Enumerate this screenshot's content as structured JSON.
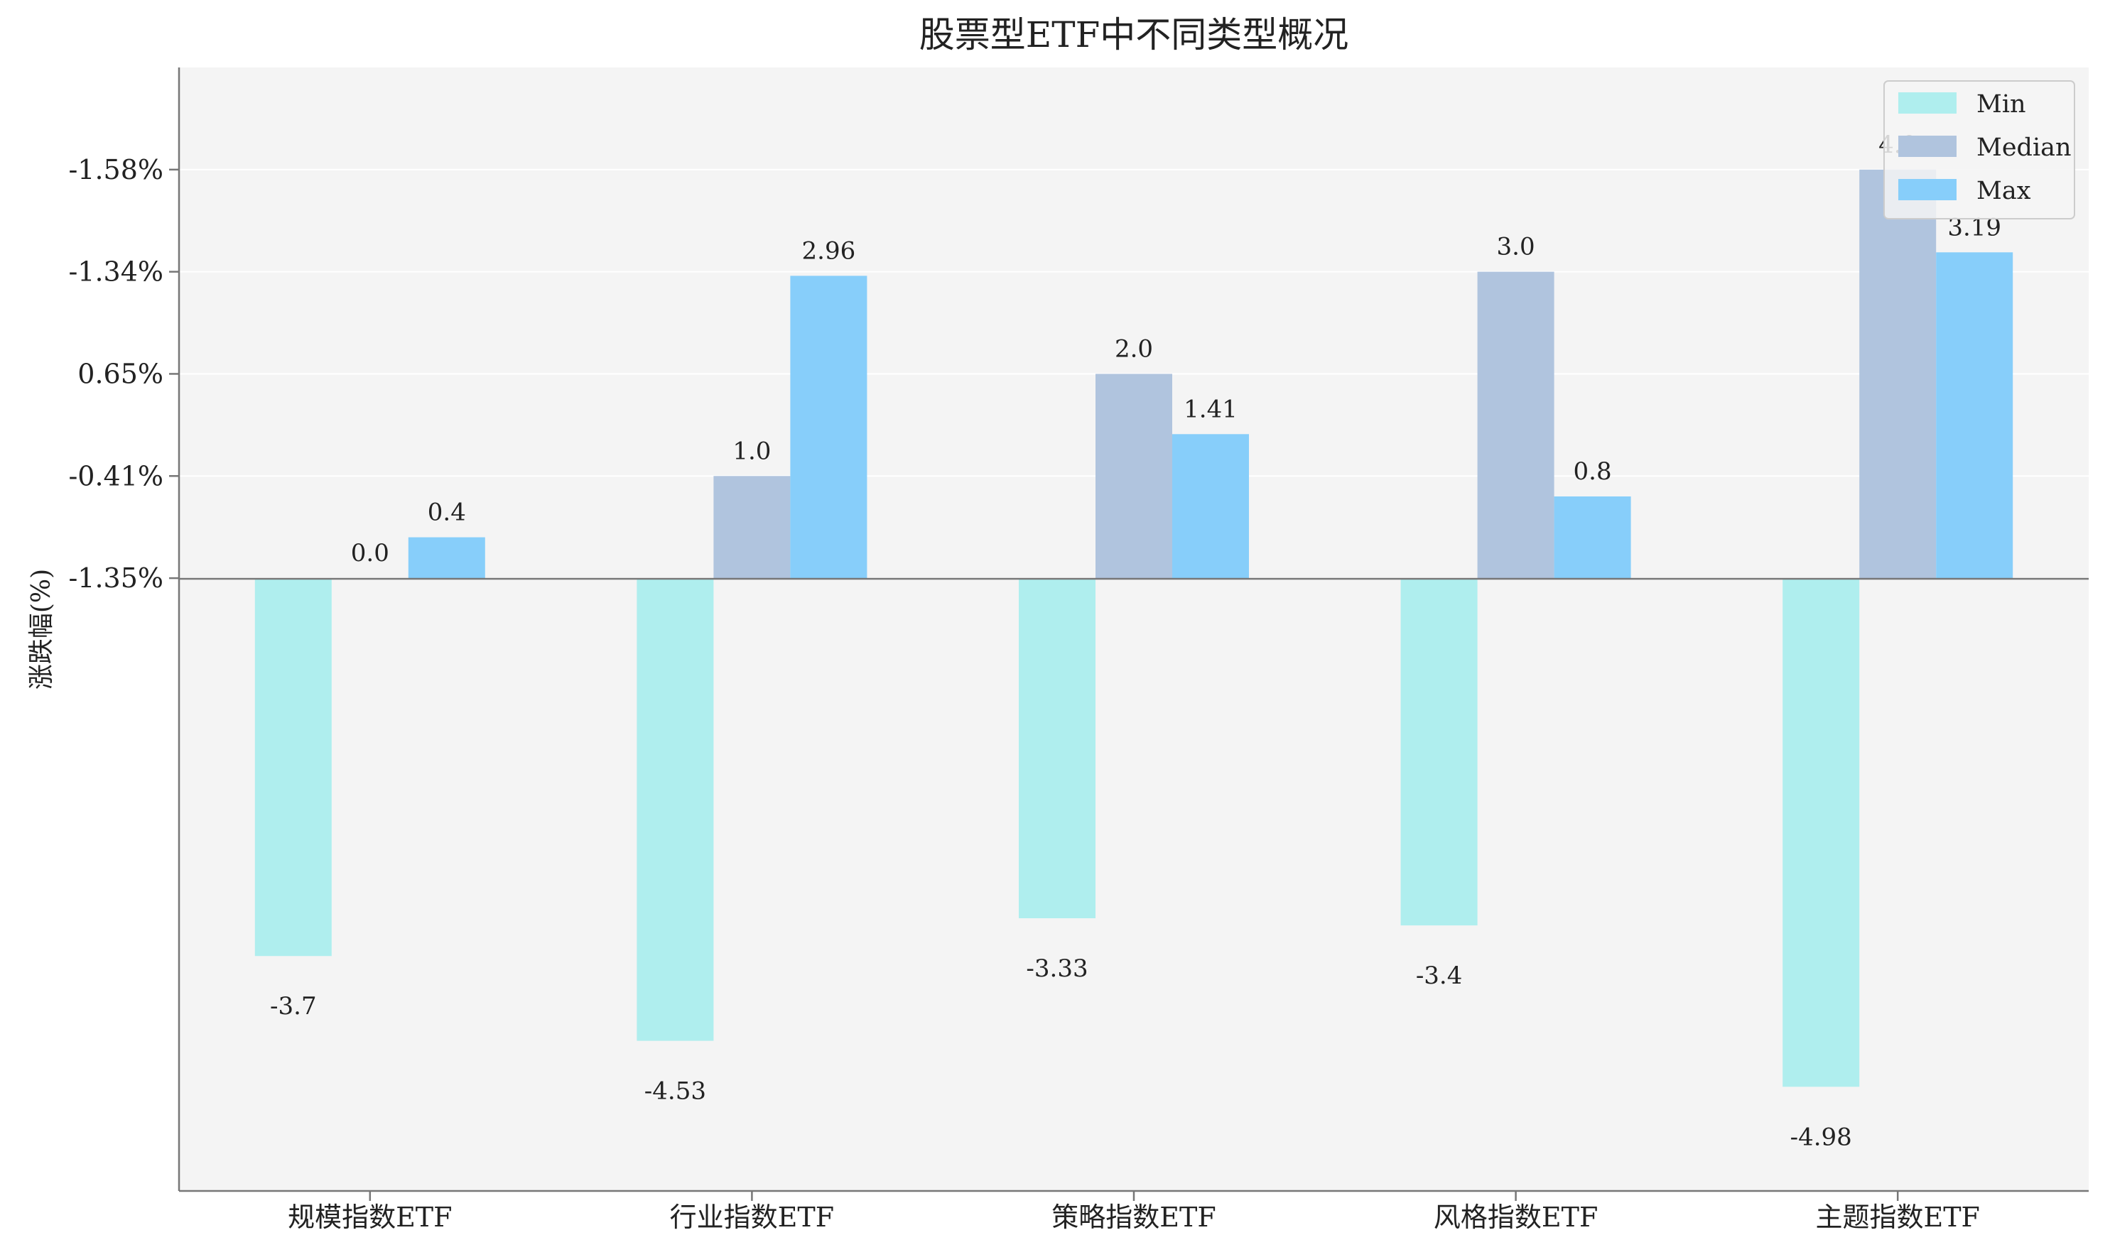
{
  "chart_data": {
    "type": "bar",
    "title": "股票型ETF中不同类型概况",
    "ylabel": "涨跌幅(%)",
    "xlabel": "",
    "categories": [
      "规模指数ETF",
      "行业指数ETF",
      "策略指数ETF",
      "风格指数ETF",
      "主题指数ETF"
    ],
    "series": [
      {
        "name": "Min",
        "color": "#afeeee",
        "values": [
          -3.7,
          -4.53,
          -3.33,
          -3.4,
          -4.98
        ],
        "labels": [
          "-3.7",
          "-4.53",
          "-3.33",
          "-3.4",
          "-4.98"
        ]
      },
      {
        "name": "Median",
        "color": "#b0c4de",
        "values": [
          0.0,
          1.0,
          2.0,
          3.0,
          4.0
        ],
        "labels": [
          "0.0",
          "1.0",
          "2.0",
          "3.0",
          "4.0"
        ]
      },
      {
        "name": "Max",
        "color": "#87cefa",
        "values": [
          0.4,
          2.96,
          1.41,
          0.8,
          3.19
        ],
        "labels": [
          "0.4",
          "2.96",
          "1.41",
          "0.8",
          "3.19"
        ]
      }
    ],
    "yticks": [
      {
        "value": 0,
        "label": "-1.35%"
      },
      {
        "value": 1,
        "label": "-0.41%"
      },
      {
        "value": 2,
        "label": "0.65%"
      },
      {
        "value": 3,
        "label": "-1.34%"
      },
      {
        "value": 4,
        "label": "-1.58%"
      }
    ],
    "ylim": [
      -6.0,
      5.0
    ],
    "legend_position": "top-right",
    "grid": "horizontal",
    "colors": {
      "plot_background": "#f4f4f4",
      "axis": "#777777",
      "grid": "#ffffff"
    }
  }
}
